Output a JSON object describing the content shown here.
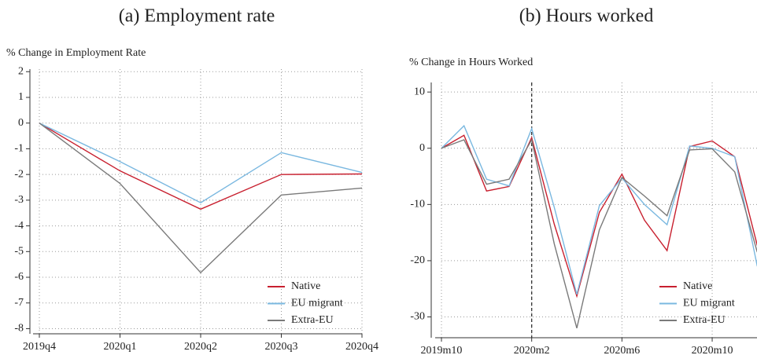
{
  "chart_data": [
    {
      "type": "line",
      "title": "(a) Employment rate",
      "y_label": "% Change in Employment Rate",
      "categories": [
        "2019q4",
        "2020q1",
        "2020q2",
        "2020q3",
        "2020q4"
      ],
      "series": [
        {
          "name": "Native",
          "color": "#c8202f",
          "values": [
            0,
            -1.86,
            -3.35,
            -2.0,
            -1.98
          ]
        },
        {
          "name": "EU migrant",
          "color": "#7ab8e0",
          "values": [
            0,
            -1.5,
            -3.1,
            -1.15,
            -1.92
          ]
        },
        {
          "name": "Extra-EU",
          "color": "#7a7a7a",
          "values": [
            0,
            -2.35,
            -5.82,
            -2.8,
            -2.53
          ]
        }
      ],
      "ylim": [
        -8.2,
        2.1
      ],
      "yticks": [
        -8,
        -7,
        -6,
        -5,
        -4,
        -3,
        -2,
        -1,
        0,
        1,
        2
      ],
      "grid": true,
      "legend": "lower right"
    },
    {
      "type": "line",
      "title": "(b) Hours worked",
      "y_label": "% Change in Hours Worked",
      "categories": [
        "2019m10",
        null,
        null,
        null,
        "2020m2",
        null,
        null,
        null,
        "2020m6",
        null,
        null,
        null,
        "2020m10",
        null,
        null
      ],
      "series": [
        {
          "name": "Native",
          "color": "#c8202f",
          "values": [
            0,
            2.3,
            -7.6,
            -6.8,
            1.9,
            -13.5,
            -26.3,
            -11.4,
            -4.6,
            -12.8,
            -18.2,
            0.3,
            1.3,
            -1.5,
            -17.3
          ]
        },
        {
          "name": "EU migrant",
          "color": "#7ab8e0",
          "values": [
            0,
            4.0,
            -5.5,
            -6.7,
            3.5,
            -10.5,
            -26.0,
            -10.2,
            -5.3,
            -10.0,
            -13.6,
            0.4,
            0.0,
            -1.5,
            -21
          ]
        },
        {
          "name": "Extra-EU",
          "color": "#7a7a7a",
          "values": [
            0,
            1.5,
            -6.4,
            -5.5,
            1.5,
            -17,
            -32,
            -14.5,
            -5.2,
            -8.5,
            -12,
            -0.3,
            -0.1,
            -4.2,
            -18.5
          ]
        }
      ],
      "ylim": [
        -33.7,
        11.7
      ],
      "yticks": [
        -30,
        -20,
        -10,
        0,
        10
      ],
      "grid": true,
      "legend": "lower right",
      "vline": 4
    }
  ]
}
